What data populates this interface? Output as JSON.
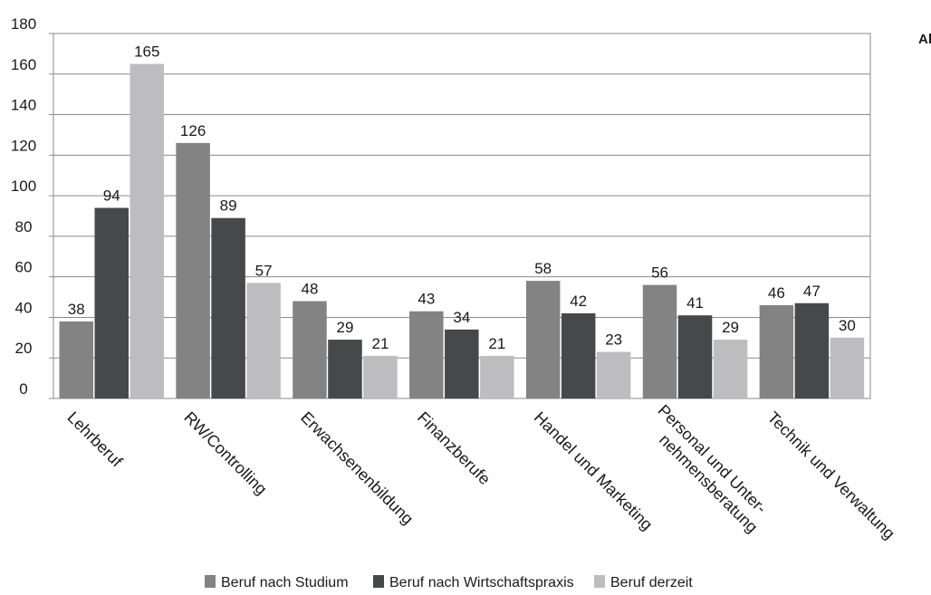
{
  "corner_text": "Al",
  "chart_data": {
    "type": "bar",
    "categories": [
      "Lehrberuf",
      "RW/Controlling",
      "Erwachsenenbildung",
      "Finanzberufe",
      "Handel und Marketing",
      "Personal und Unter-\nnehmensberatung",
      "Technik und Verwaltung"
    ],
    "series": [
      {
        "name": "Beruf nach Studium",
        "values": [
          38,
          126,
          48,
          43,
          58,
          56,
          46
        ],
        "color": "#838383"
      },
      {
        "name": "Beruf nach Wirtschaftspraxis",
        "values": [
          94,
          89,
          29,
          34,
          42,
          41,
          47
        ],
        "color": "#47484a"
      },
      {
        "name": "Beruf derzeit",
        "values": [
          165,
          57,
          21,
          21,
          23,
          29,
          30
        ],
        "color": "#bdbdbf"
      }
    ],
    "y_ticks": [
      0,
      20,
      40,
      60,
      80,
      100,
      120,
      140,
      160,
      180
    ],
    "ylim": [
      0,
      180
    ],
    "grid": true,
    "legend": "bottom"
  }
}
